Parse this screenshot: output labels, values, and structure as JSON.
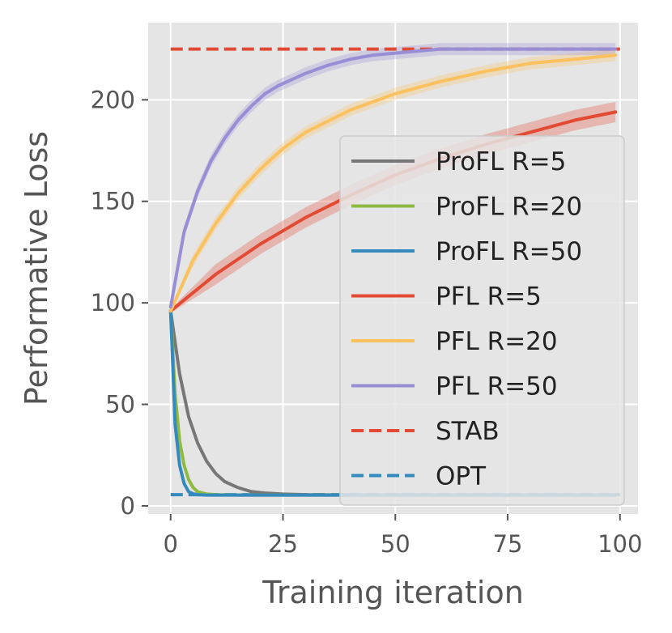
{
  "chart_data": {
    "type": "line",
    "title": "",
    "xlabel": "Training iteration",
    "ylabel": "Performative Loss",
    "xlim": [
      -5,
      104
    ],
    "ylim": [
      -4,
      238
    ],
    "xticks": [
      0,
      25,
      50,
      75,
      100
    ],
    "yticks": [
      0,
      50,
      100,
      150,
      200
    ],
    "grid": true,
    "legend_position": "center-right",
    "series": [
      {
        "name": "ProFL R=5",
        "color": "#777777",
        "style": "solid",
        "x": [
          0,
          2,
          4,
          6,
          8,
          10,
          12,
          15,
          18,
          21,
          25,
          30,
          35,
          40,
          50,
          60,
          70,
          80,
          90,
          99
        ],
        "y": [
          96,
          65,
          44,
          31,
          22,
          16,
          12,
          9,
          7,
          6.3,
          5.8,
          5.5,
          5.4,
          5.3,
          5.3,
          5.3,
          5.3,
          5.3,
          5.3,
          5.3
        ]
      },
      {
        "name": "ProFL R=20",
        "color": "#8EBA42",
        "style": "solid",
        "x": [
          0,
          1,
          2,
          3,
          4,
          5,
          6,
          8,
          10,
          12,
          15,
          20,
          30,
          50,
          75,
          99
        ],
        "y": [
          96,
          55,
          32,
          20,
          13,
          9,
          7,
          5.8,
          5.5,
          5.4,
          5.3,
          5.3,
          5.3,
          5.3,
          5.3,
          5.3
        ]
      },
      {
        "name": "ProFL R=50",
        "color": "#348ABD",
        "style": "solid",
        "x": [
          0,
          1,
          2,
          3,
          4,
          5,
          6,
          8,
          10,
          20,
          50,
          99
        ],
        "y": [
          96,
          40,
          20,
          11,
          7,
          6,
          5.5,
          5.3,
          5.3,
          5.3,
          5.3,
          5.3
        ]
      },
      {
        "name": "PFL R=5",
        "color": "#E24A33",
        "style": "solid",
        "band": 5,
        "x": [
          0,
          10,
          20,
          30,
          40,
          50,
          60,
          70,
          80,
          90,
          99
        ],
        "y": [
          96,
          114,
          129,
          142,
          153,
          163,
          171,
          178,
          184,
          190,
          194
        ]
      },
      {
        "name": "PFL R=20",
        "color": "#FBC15E",
        "style": "solid",
        "band": 3,
        "x": [
          0,
          5,
          10,
          15,
          20,
          25,
          30,
          40,
          50,
          60,
          70,
          80,
          90,
          99
        ],
        "y": [
          96,
          121,
          139,
          154,
          166,
          176,
          184,
          195,
          203,
          209,
          214,
          218,
          220,
          222
        ]
      },
      {
        "name": "PFL R=50",
        "color": "#988ED5",
        "style": "solid",
        "band": 3,
        "x": [
          0,
          3,
          6,
          9,
          12,
          15,
          18,
          21,
          24,
          27,
          30,
          35,
          40,
          45,
          50,
          55,
          60,
          70,
          80,
          90,
          99
        ],
        "y": [
          98,
          135,
          155,
          170,
          181,
          190,
          197,
          203,
          207,
          210,
          213,
          217,
          220,
          222,
          223,
          224,
          225,
          225,
          225,
          225,
          225
        ]
      },
      {
        "name": "STAB",
        "color": "#E24A33",
        "style": "dashed",
        "x": [
          0,
          100
        ],
        "y": [
          225,
          225
        ]
      },
      {
        "name": "OPT",
        "color": "#348ABD",
        "style": "dashed",
        "x": [
          0,
          100
        ],
        "y": [
          5.5,
          5.5
        ]
      }
    ]
  }
}
